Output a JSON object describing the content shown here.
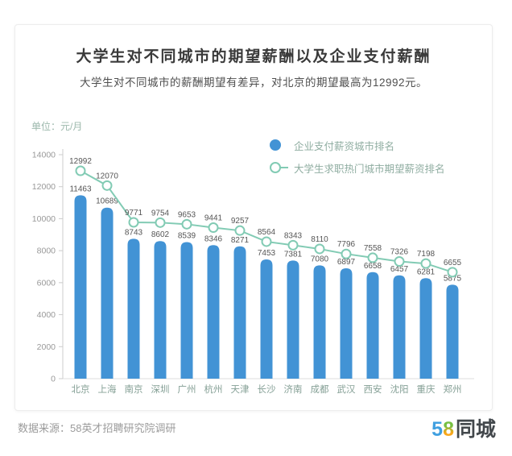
{
  "header": {
    "title": "大学生对不同城市的期望薪酬以及企业支付薪酬",
    "subtitle": "大学生对不同城市的薪酬期望有差异，对北京的期望最高为12992元。"
  },
  "chart": {
    "unit_label": "单位：元/月",
    "legend": [
      {
        "label": "企业支付薪资城市排名",
        "marker": "filled-circle",
        "color": "#4293d5"
      },
      {
        "label": "大学生求职热门城市期望薪资排名",
        "marker": "open-circle-line",
        "color": "#82cbb4"
      }
    ]
  },
  "chart_data": {
    "type": "bar+line",
    "title": "大学生对不同城市的期望薪酬以及企业支付薪酬",
    "unit": "元/月",
    "categories": [
      "北京",
      "上海",
      "南京",
      "深圳",
      "广州",
      "杭州",
      "天津",
      "长沙",
      "济南",
      "成都",
      "武汉",
      "西安",
      "沈阳",
      "重庆",
      "郑州"
    ],
    "series": [
      {
        "name": "企业支付薪资城市排名",
        "type": "bar",
        "color": "#4293d5",
        "values": [
          11463,
          10689,
          8743,
          8602,
          8539,
          8346,
          8271,
          7453,
          7381,
          7080,
          6897,
          6658,
          6457,
          6281,
          5875
        ]
      },
      {
        "name": "大学生求职热门城市期望薪资排名",
        "type": "line",
        "color": "#82cbb4",
        "values": [
          12992,
          12070,
          9771,
          9754,
          9653,
          9441,
          9257,
          8564,
          8343,
          8110,
          7796,
          7558,
          7326,
          7198,
          6655
        ]
      }
    ],
    "ylim": [
      0,
      14000
    ],
    "yticks": [
      0,
      2000,
      4000,
      6000,
      8000,
      10000,
      12000,
      14000
    ],
    "grid": false,
    "legend_position": "top-right"
  },
  "footer": {
    "source": "数据来源：58英才招聘研究院调研",
    "logo": {
      "part1": "5",
      "part2": "8",
      "part3": "同城"
    }
  },
  "colors": {
    "bar": "#4293d5",
    "line": "#82cbb4",
    "axis": "#cccccc",
    "axis_label": "#999999",
    "value_label": "#555555",
    "city_label": "#85a096",
    "unit_label": "#9cb8ac",
    "legend_text": "#8fada1",
    "logo_blue": "#3f9fe0",
    "logo_green": "#76c043",
    "logo_orange": "#f9a61a",
    "logo_dark": "#43484c"
  }
}
